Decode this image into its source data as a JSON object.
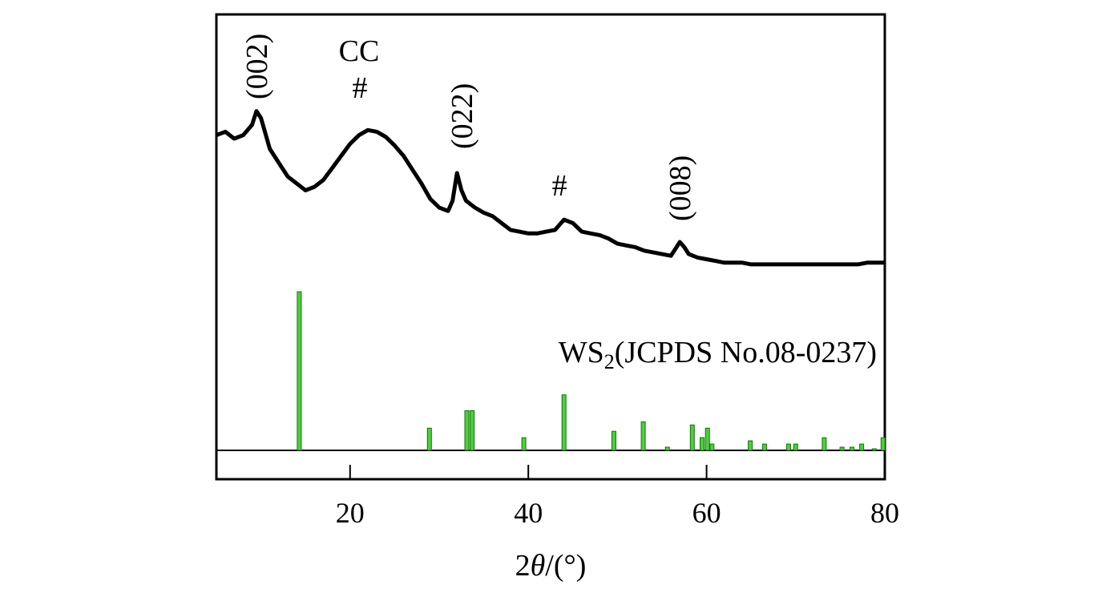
{
  "chart_data": {
    "type": "line",
    "title": "",
    "xlabel_prefix": "2",
    "xlabel_theta": "θ",
    "xlabel_suffix": "/(°)",
    "xlim": [
      5,
      80
    ],
    "xticks": [
      20,
      40,
      60,
      80
    ],
    "yticks": [],
    "grid": false,
    "series": [
      {
        "values_description": "",
        "x": [
          5,
          6,
          7,
          8,
          9,
          9.5,
          10,
          11,
          12,
          13,
          14,
          15,
          16,
          17,
          18,
          19,
          20,
          21,
          22,
          23,
          24,
          25,
          26,
          27,
          28,
          29,
          30,
          31,
          31.5,
          32,
          32.5,
          33,
          34,
          35,
          36,
          37,
          38,
          39,
          40,
          41,
          42,
          43,
          44,
          45,
          46,
          47,
          48,
          49,
          50,
          51,
          52,
          53,
          54,
          55,
          56,
          56.5,
          57,
          57.5,
          58,
          59,
          60,
          61,
          62,
          63,
          64,
          65,
          66,
          67,
          68,
          69,
          70,
          71,
          72,
          73,
          74,
          75,
          76,
          77,
          78,
          79,
          80
        ],
        "y": [
          82,
          84,
          80,
          82,
          88,
          96,
          92,
          74,
          66,
          58,
          54,
          50,
          52,
          56,
          63,
          70,
          77,
          82,
          85,
          84,
          81,
          76,
          70,
          62,
          54,
          45,
          40,
          38,
          44,
          60,
          50,
          44,
          40,
          37,
          35,
          31,
          27,
          26,
          25,
          25,
          26,
          27,
          33,
          31,
          26,
          25,
          24,
          22,
          19,
          18,
          17,
          15,
          14,
          13,
          12,
          16,
          20,
          17,
          13,
          11,
          10,
          9,
          8,
          8,
          8,
          7,
          7,
          7,
          7,
          7,
          7,
          7,
          7,
          7,
          7,
          7,
          7,
          7,
          8,
          8,
          8
        ]
      }
    ],
    "reference_pattern": {
      "name": "WS",
      "name_sub": "2",
      "name_rest": "(JCPDS No.08-0237)",
      "x": [
        14.3,
        28.9,
        33.1,
        33.7,
        39.5,
        44.0,
        49.6,
        52.9,
        55.6,
        58.4,
        59.5,
        60.1,
        60.6,
        64.9,
        66.5,
        69.2,
        70.0,
        73.2,
        75.2,
        76.3,
        77.4,
        78.8,
        79.8
      ],
      "y": [
        100,
        14,
        25,
        25,
        8,
        35,
        12,
        18,
        2,
        16,
        8,
        14,
        4,
        6,
        4,
        4,
        4,
        8,
        2,
        2,
        4,
        1,
        8
      ]
    },
    "annotations": [
      {
        "text": "(002)",
        "x": 9.5,
        "rotated": true
      },
      {
        "text": "CC",
        "x": 22.5,
        "rotated": false
      },
      {
        "text": "#",
        "x": 22.5,
        "rotated": false
      },
      {
        "text": "(022)",
        "x": 32.5,
        "rotated": true
      },
      {
        "text": "#",
        "x": 43.5,
        "rotated": false
      },
      {
        "text": "(008)",
        "x": 57,
        "rotated": true
      }
    ]
  }
}
